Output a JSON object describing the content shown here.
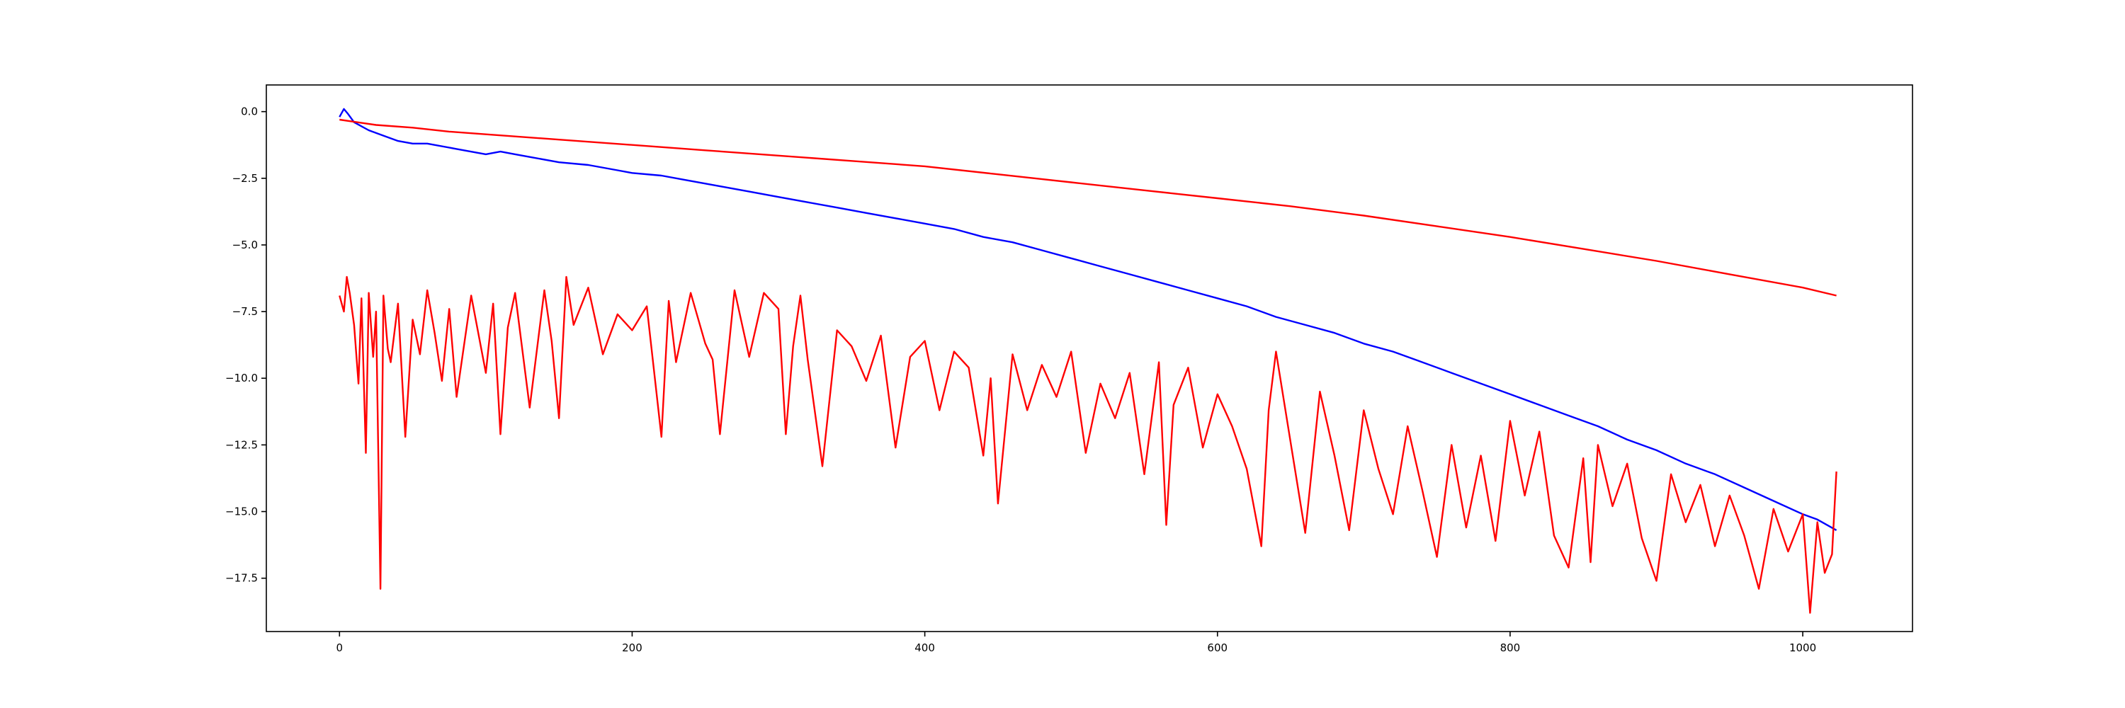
{
  "chart_data": {
    "type": "line",
    "title": "",
    "xlabel": "",
    "ylabel": "",
    "xlim": [
      -50,
      1075
    ],
    "ylim": [
      -19.5,
      1.0
    ],
    "grid": false,
    "legend": "none",
    "x_ticks": [
      {
        "value": 0,
        "label": "0"
      },
      {
        "value": 200,
        "label": "200"
      },
      {
        "value": 400,
        "label": "400"
      },
      {
        "value": 600,
        "label": "600"
      },
      {
        "value": 800,
        "label": "800"
      },
      {
        "value": 1000,
        "label": "1000"
      }
    ],
    "y_ticks": [
      {
        "value": 0.0,
        "label": "0.0"
      },
      {
        "value": -2.5,
        "label": "−2.5"
      },
      {
        "value": -5.0,
        "label": "−5.0"
      },
      {
        "value": -7.5,
        "label": "−7.5"
      },
      {
        "value": -10.0,
        "label": "−10.0"
      },
      {
        "value": -12.5,
        "label": "−12.5"
      },
      {
        "value": -15.0,
        "label": "−15.0"
      },
      {
        "value": -17.5,
        "label": "−17.5"
      }
    ],
    "series": [
      {
        "color": "#0000ff",
        "x": [
          0,
          3,
          6,
          10,
          20,
          30,
          40,
          50,
          60,
          80,
          100,
          110,
          120,
          130,
          150,
          170,
          190,
          200,
          220,
          240,
          260,
          280,
          300,
          320,
          340,
          360,
          380,
          400,
          420,
          440,
          460,
          480,
          500,
          520,
          540,
          560,
          580,
          600,
          620,
          640,
          660,
          680,
          700,
          720,
          740,
          760,
          780,
          800,
          820,
          840,
          860,
          880,
          900,
          920,
          940,
          960,
          980,
          1000,
          1010,
          1023
        ],
        "y": [
          -0.2,
          0.1,
          -0.1,
          -0.4,
          -0.7,
          -0.9,
          -1.1,
          -1.2,
          -1.2,
          -1.4,
          -1.6,
          -1.5,
          -1.6,
          -1.7,
          -1.9,
          -2.0,
          -2.2,
          -2.3,
          -2.4,
          -2.6,
          -2.8,
          -3.0,
          -3.2,
          -3.4,
          -3.6,
          -3.8,
          -4.0,
          -4.2,
          -4.4,
          -4.7,
          -4.9,
          -5.2,
          -5.5,
          -5.8,
          -6.1,
          -6.4,
          -6.7,
          -7.0,
          -7.3,
          -7.7,
          -8.0,
          -8.3,
          -8.7,
          -9.0,
          -9.4,
          -9.8,
          -10.2,
          -10.6,
          -11.0,
          -11.4,
          -11.8,
          -12.3,
          -12.7,
          -13.2,
          -13.6,
          -14.1,
          -14.6,
          -15.1,
          -15.3,
          -15.7
        ]
      },
      {
        "color": "#ff0000",
        "x": [
          0,
          25,
          50,
          75,
          100,
          150,
          200,
          250,
          300,
          350,
          400,
          450,
          500,
          550,
          600,
          650,
          700,
          750,
          800,
          850,
          900,
          950,
          1000,
          1023
        ],
        "y": [
          -0.3,
          -0.5,
          -0.6,
          -0.75,
          -0.85,
          -1.05,
          -1.25,
          -1.45,
          -1.65,
          -1.85,
          -2.05,
          -2.35,
          -2.65,
          -2.95,
          -3.25,
          -3.55,
          -3.9,
          -4.3,
          -4.7,
          -5.15,
          -5.6,
          -6.1,
          -6.6,
          -6.9
        ]
      },
      {
        "color": "#ff0000",
        "x": [
          0,
          3,
          5,
          7,
          10,
          13,
          15,
          18,
          20,
          23,
          25,
          28,
          30,
          33,
          35,
          40,
          45,
          50,
          55,
          60,
          65,
          70,
          75,
          80,
          90,
          100,
          105,
          110,
          115,
          120,
          130,
          140,
          145,
          150,
          155,
          160,
          170,
          180,
          190,
          200,
          210,
          220,
          225,
          230,
          240,
          250,
          255,
          260,
          270,
          280,
          290,
          300,
          305,
          310,
          315,
          320,
          330,
          340,
          350,
          360,
          370,
          380,
          390,
          400,
          410,
          420,
          430,
          440,
          445,
          450,
          460,
          470,
          480,
          490,
          500,
          510,
          520,
          530,
          540,
          550,
          560,
          565,
          570,
          580,
          590,
          600,
          610,
          620,
          630,
          635,
          640,
          650,
          660,
          670,
          680,
          690,
          700,
          710,
          720,
          730,
          740,
          750,
          760,
          770,
          780,
          790,
          800,
          810,
          820,
          830,
          840,
          850,
          855,
          860,
          870,
          880,
          890,
          900,
          910,
          920,
          930,
          940,
          950,
          960,
          970,
          980,
          990,
          1000,
          1005,
          1010,
          1015,
          1020,
          1023
        ],
        "y": [
          -6.9,
          -7.5,
          -6.2,
          -6.8,
          -8.0,
          -10.2,
          -7.0,
          -12.8,
          -6.8,
          -9.2,
          -7.5,
          -17.9,
          -6.9,
          -8.9,
          -9.4,
          -7.2,
          -12.2,
          -7.8,
          -9.1,
          -6.7,
          -8.3,
          -10.1,
          -7.4,
          -10.7,
          -6.9,
          -9.8,
          -7.2,
          -12.1,
          -8.1,
          -6.8,
          -11.1,
          -6.7,
          -8.6,
          -11.5,
          -6.2,
          -8.0,
          -6.6,
          -9.1,
          -7.6,
          -8.2,
          -7.3,
          -12.2,
          -7.1,
          -9.4,
          -6.8,
          -8.7,
          -9.3,
          -12.1,
          -6.7,
          -9.2,
          -6.8,
          -7.4,
          -12.1,
          -8.8,
          -6.9,
          -9.3,
          -13.3,
          -8.2,
          -8.8,
          -10.1,
          -8.4,
          -12.6,
          -9.2,
          -8.6,
          -11.2,
          -9.0,
          -9.6,
          -12.9,
          -10.0,
          -14.7,
          -9.1,
          -11.2,
          -9.5,
          -10.7,
          -9.0,
          -12.8,
          -10.2,
          -11.5,
          -9.8,
          -13.6,
          -9.4,
          -15.5,
          -11.0,
          -9.6,
          -12.6,
          -10.6,
          -11.8,
          -13.4,
          -16.3,
          -11.2,
          -9.0,
          -12.4,
          -15.8,
          -10.5,
          -12.9,
          -15.7,
          -11.2,
          -13.4,
          -15.1,
          -11.8,
          -14.2,
          -16.7,
          -12.5,
          -15.6,
          -12.9,
          -16.1,
          -11.6,
          -14.4,
          -12.0,
          -15.9,
          -17.1,
          -13.0,
          -16.9,
          -12.5,
          -14.8,
          -13.2,
          -16.0,
          -17.6,
          -13.6,
          -15.4,
          -14.0,
          -16.3,
          -14.4,
          -15.9,
          -17.9,
          -14.9,
          -16.5,
          -15.1,
          -18.8,
          -15.4,
          -17.3,
          -16.6,
          -13.5
        ]
      }
    ]
  }
}
